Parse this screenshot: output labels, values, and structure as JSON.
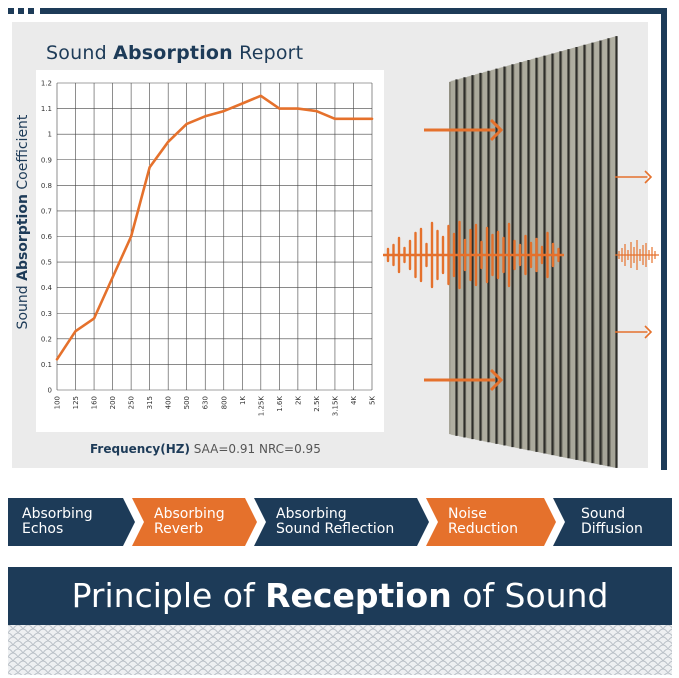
{
  "report": {
    "title_pre": "Sound ",
    "title_bold": "Absorption",
    "title_post": " Report"
  },
  "yaxis": {
    "label_pre": "Sound ",
    "label_bold": "Absorption",
    "label_post": " Coefficient"
  },
  "footnote": {
    "freq_label": "Frequency(HZ)",
    "metrics": "SAA=0.91  NRC=0.95"
  },
  "chart_data": {
    "type": "line",
    "x": [
      "100",
      "125",
      "160",
      "200",
      "250",
      "315",
      "400",
      "500",
      "630",
      "800",
      "1K",
      "1.25K",
      "1.6K",
      "2K",
      "2.5K",
      "3.15K",
      "4K",
      "5K"
    ],
    "y": [
      0.12,
      0.23,
      0.28,
      0.44,
      0.6,
      0.87,
      0.97,
      1.04,
      1.07,
      1.09,
      1.12,
      1.15,
      1.1,
      1.1,
      1.09,
      1.06,
      1.06,
      1.06
    ],
    "yticks": [
      "0",
      "0.1",
      "0.2",
      "0.3",
      "0.4",
      "0.5",
      "0.6",
      "0.7",
      "0.8",
      "0.9",
      "1",
      "1.1",
      "1.2"
    ],
    "ylim": [
      0,
      1.2
    ],
    "grid": true,
    "color": "#e5712c"
  },
  "steps": [
    {
      "label": "Absorbing\nEchos",
      "color": "#1d3b58"
    },
    {
      "label": "Absorbing\nReverb",
      "color": "#e5712c"
    },
    {
      "label": "Absorbing\nSound Reflection",
      "color": "#1d3b58"
    },
    {
      "label": "Noise\nReduction",
      "color": "#e5712c"
    },
    {
      "label": "Sound\nDiffusion",
      "color": "#1d3b58"
    }
  ],
  "banner": {
    "pre": "Principle of ",
    "bold": "Reception",
    "post": " of Sound"
  },
  "colors": {
    "navy": "#1d3b58",
    "orange": "#e5712c",
    "panel_bg": "#ebebeb"
  },
  "icons": {
    "panel": "acoustic-wood-slat-panel",
    "arrows": "arrow-right",
    "waves": "sound-wave"
  }
}
